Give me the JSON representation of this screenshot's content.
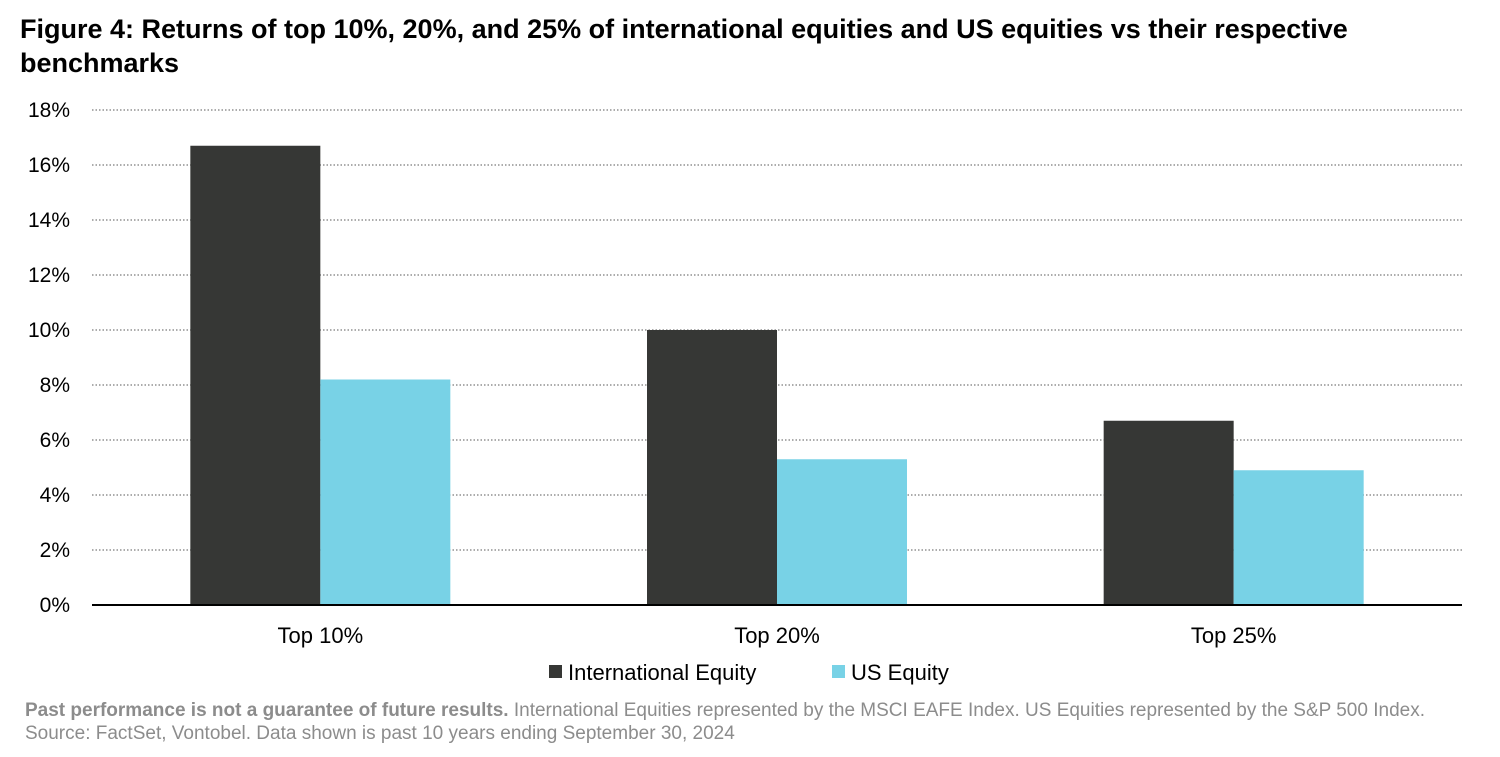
{
  "title": "Figure 4: Returns of top 10%, 20%, and 25% of international equities and US equities vs their respective benchmarks",
  "chart_data": {
    "type": "bar",
    "categories": [
      "Top 10%",
      "Top 20%",
      "Top 25%"
    ],
    "series": [
      {
        "name": "International Equity",
        "values": [
          16.7,
          10.0,
          6.7
        ],
        "color": "#363735"
      },
      {
        "name": "US Equity",
        "values": [
          8.2,
          5.3,
          4.9
        ],
        "color": "#78d2e6"
      }
    ],
    "ylim": [
      0,
      18
    ],
    "yticks": [
      0,
      2,
      4,
      6,
      8,
      10,
      12,
      14,
      16,
      18
    ],
    "ytick_labels": [
      "0%",
      "2%",
      "4%",
      "6%",
      "8%",
      "10%",
      "12%",
      "14%",
      "16%",
      "18%"
    ],
    "grid": true,
    "legend_position": "bottom"
  },
  "footnote": {
    "bold": "Past performance is not a guarantee of future results.",
    "text": " International Equities represented by the MSCI EAFE Index. US Equities represented by the S&P 500 Index. Source: FactSet, Vontobel. Data shown is past 10 years ending September 30, 2024"
  }
}
